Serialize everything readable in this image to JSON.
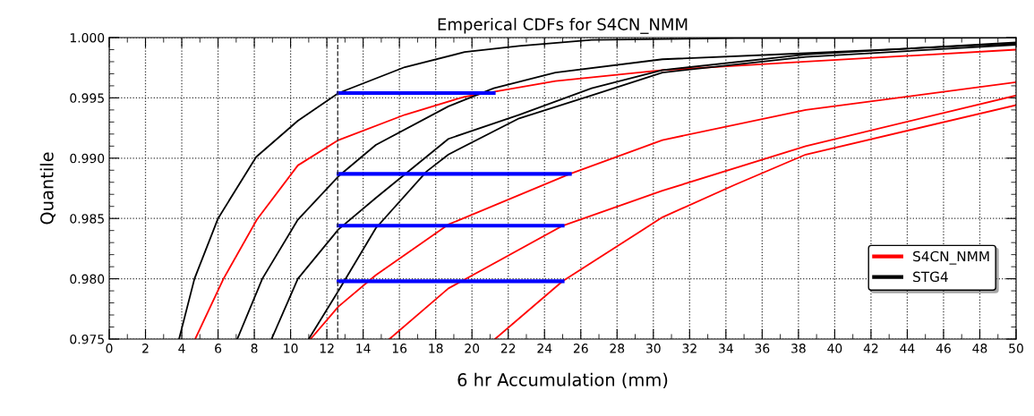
{
  "chart_data": {
    "type": "line",
    "title": "Emperical CDFs for S4CN_NMM",
    "xlabel": "6 hr Accumulation (mm)",
    "ylabel": "Quantile",
    "xlim": [
      0,
      50
    ],
    "ylim": [
      0.975,
      1.0
    ],
    "xticks": [
      0,
      2,
      4,
      6,
      8,
      10,
      12,
      14,
      16,
      18,
      20,
      22,
      24,
      26,
      28,
      30,
      32,
      34,
      36,
      38,
      40,
      42,
      44,
      46,
      48,
      50
    ],
    "yticks": [
      {
        "value": 0.975,
        "label": "0.975"
      },
      {
        "value": 0.98,
        "label": "0.980"
      },
      {
        "value": 0.985,
        "label": "0.985"
      },
      {
        "value": 0.99,
        "label": "0.990"
      },
      {
        "value": 0.995,
        "label": "0.995"
      },
      {
        "value": 1.0,
        "label": "1.000"
      }
    ],
    "grid": true,
    "legend": "bottom right",
    "line_style": "solid",
    "marker": "none",
    "ref_lines": [
      {
        "axis": "x",
        "value": 12.6,
        "color": "#333333",
        "line_style": "dashed"
      }
    ],
    "series": [
      {
        "name": "S4CN_NMM",
        "color": "#ff0000",
        "x": [
          4.74,
          6.3,
          8.14,
          10.4,
          12.64,
          16.3,
          19.6,
          21.2,
          24.6,
          30.5,
          38.4,
          50
        ],
        "values": [
          0.975,
          0.98,
          0.9849,
          0.9894,
          0.9915,
          0.9936,
          0.9951,
          0.9955,
          0.9964,
          0.9973,
          0.998,
          0.999
        ]
      },
      {
        "name": "STG4",
        "color": "#000000",
        "x": [
          3.85,
          4.7,
          6.0,
          8.1,
          10.4,
          12.64,
          16.3,
          19.6,
          22.6,
          26.6,
          34.5,
          50
        ],
        "values": [
          0.975,
          0.98,
          0.985,
          0.9901,
          0.9931,
          0.9954,
          0.99755,
          0.9988,
          0.9993,
          0.9998,
          0.99995,
          1.0
        ]
      },
      {
        "color": "#000000",
        "x": [
          7.06,
          8.44,
          10.4,
          12.64,
          14.7,
          18.7,
          21.2,
          24.6,
          30.5,
          38.4,
          50
        ],
        "values": [
          0.975,
          0.98,
          0.9849,
          0.9885,
          0.9911,
          0.9943,
          0.9958,
          0.9971,
          0.9982,
          0.9987,
          0.9995
        ]
      },
      {
        "color": "#000000",
        "x": [
          8.95,
          10.4,
          12.64,
          14.7,
          18.7,
          22.6,
          26.6,
          30.5,
          38.4,
          50
        ],
        "values": [
          0.975,
          0.98,
          0.9841,
          0.9867,
          0.9916,
          0.9936,
          0.9958,
          0.9973,
          0.9986,
          0.9996
        ]
      },
      {
        "color": "#000000",
        "x": [
          11.0,
          12.64,
          14.7,
          17.5,
          18.7,
          22.6,
          26.6,
          30.5,
          38.4,
          50
        ],
        "values": [
          0.975,
          0.979,
          0.9842,
          0.9889,
          0.9903,
          0.9933,
          0.9952,
          0.9971,
          0.9984,
          0.9994
        ]
      },
      {
        "color": "#ff0000",
        "x": [
          11.1,
          12.64,
          14.7,
          18.7,
          25.4,
          30.5,
          38.4,
          50
        ],
        "values": [
          0.975,
          0.9777,
          0.9803,
          0.9845,
          0.9887,
          0.9915,
          0.994,
          0.9963
        ]
      },
      {
        "color": "#ff0000",
        "x": [
          15.45,
          18.7,
          25.0,
          30.5,
          38.4,
          50
        ],
        "values": [
          0.975,
          0.9792,
          0.9844,
          0.9873,
          0.991,
          0.9952
        ]
      },
      {
        "color": "#ff0000",
        "x": [
          21.27,
          25.0,
          30.5,
          34.5,
          38.4,
          50
        ],
        "values": [
          0.975,
          0.9798,
          0.9851,
          0.9878,
          0.9903,
          0.9944
        ]
      },
      {
        "color": "#0000ff",
        "x": [
          12.64,
          21.2
        ],
        "values": [
          0.9954,
          0.9954
        ]
      },
      {
        "color": "#0000ff",
        "x": [
          12.64,
          25.4
        ],
        "values": [
          0.9887,
          0.9887
        ]
      },
      {
        "color": "#0000ff",
        "x": [
          12.64,
          25.0
        ],
        "values": [
          0.9844,
          0.9844
        ]
      },
      {
        "color": "#0000ff",
        "x": [
          12.64,
          25.0
        ],
        "values": [
          0.9798,
          0.9798
        ]
      }
    ]
  }
}
